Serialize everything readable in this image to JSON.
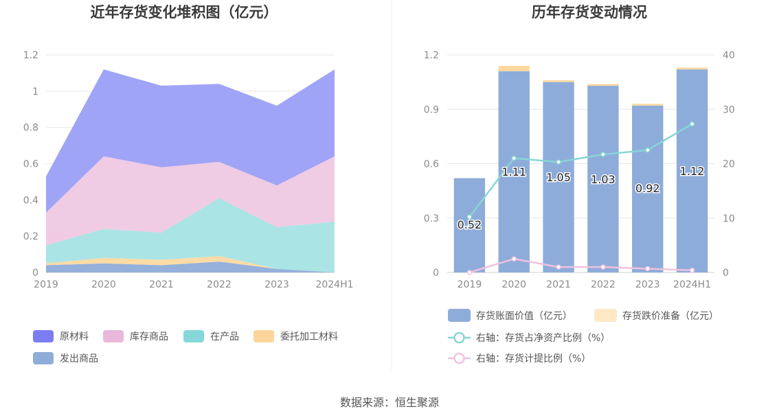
{
  "chart_data": [
    {
      "type": "area",
      "title": "近年存货变化堆积图（亿元）",
      "categories": [
        "2019",
        "2020",
        "2021",
        "2022",
        "2023",
        "2024H1"
      ],
      "ylim": [
        0,
        1.2
      ],
      "yticks": [
        "0",
        "0.2",
        "0.4",
        "0.6",
        "0.8",
        "1",
        "1.2"
      ],
      "stacked": true,
      "grid": true,
      "legend_position": "bottom",
      "series": [
        {
          "name": "发出商品",
          "color": "#8fadd9",
          "values": [
            0.04,
            0.05,
            0.04,
            0.06,
            0.02,
            0.0
          ]
        },
        {
          "name": "委托加工材料",
          "color": "#fdd9a0",
          "values": [
            0.01,
            0.03,
            0.03,
            0.03,
            0.0,
            0.0
          ]
        },
        {
          "name": "在产品",
          "color": "#a6e3e3",
          "values": [
            0.1,
            0.16,
            0.15,
            0.32,
            0.23,
            0.28
          ]
        },
        {
          "name": "库存商品",
          "color": "#efc8e3",
          "values": [
            0.18,
            0.4,
            0.36,
            0.2,
            0.23,
            0.36
          ]
        },
        {
          "name": "原材料",
          "color": "#9b9ff5",
          "values": [
            0.2,
            0.48,
            0.45,
            0.43,
            0.44,
            0.48
          ]
        }
      ],
      "legend_order": [
        "原材料",
        "库存商品",
        "在产品",
        "委托加工材料",
        "发出商品"
      ],
      "legend_colors": {
        "原材料": "#7b7ef3",
        "库存商品": "#e9b8db",
        "在产品": "#86d8d8",
        "委托加工材料": "#fcd59a",
        "发出商品": "#8fadd9"
      }
    },
    {
      "type": "bar",
      "title": "历年存货变动情况",
      "categories": [
        "2019",
        "2020",
        "2021",
        "2022",
        "2023",
        "2024H1"
      ],
      "ylim": [
        0,
        1.2
      ],
      "yticks": [
        "0",
        "0.3",
        "0.6",
        "0.9",
        "1.2"
      ],
      "y2lim": [
        0,
        40
      ],
      "y2ticks": [
        "0",
        "10",
        "20",
        "30",
        "40"
      ],
      "grid": true,
      "legend_position": "bottom",
      "series": [
        {
          "name": "存货账面价值（亿元）",
          "kind": "bar",
          "color": "#8eacd9",
          "values": [
            0.52,
            1.11,
            1.05,
            1.03,
            0.92,
            1.12
          ],
          "labels": [
            "0.52",
            "1.11",
            "1.05",
            "1.03",
            "0.92",
            "1.12"
          ]
        },
        {
          "name": "存货跌价准备（亿元）",
          "kind": "bar",
          "color": "#fdd9a0",
          "values": [
            0.0,
            0.03,
            0.01,
            0.01,
            0.01,
            0.01
          ]
        },
        {
          "name": "右轴：存货占净资产比例（%）",
          "kind": "line",
          "axis": "right",
          "color": "#86d6d6",
          "values": [
            10.2,
            21.0,
            20.3,
            21.7,
            22.5,
            27.3
          ]
        },
        {
          "name": "右轴：存货计提比例（%）",
          "kind": "line",
          "axis": "right",
          "color": "#efc2df",
          "values": [
            0.0,
            2.5,
            1.0,
            1.0,
            0.7,
            0.4
          ]
        }
      ]
    }
  ],
  "footer": {
    "source": "数据来源：恒生聚源"
  }
}
